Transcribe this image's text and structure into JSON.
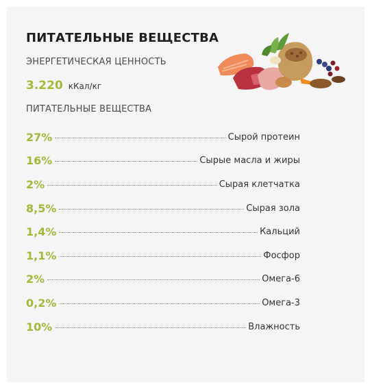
{
  "title": "ПИТАТЕЛЬНЫЕ ВЕЩЕСТВА",
  "energy": {
    "label": "ЭНЕРГЕТИЧЕСКАЯ ЦЕННОСТЬ",
    "value": "3.220",
    "unit": "кКал/кг"
  },
  "nutrients": {
    "label": "ПИТАТЕЛЬНЫЕ ВЕЩЕСТВА",
    "items": [
      {
        "value": "27%",
        "name": "Сырой протеин"
      },
      {
        "value": "16%",
        "name": "Сырые масла и жиры"
      },
      {
        "value": "2%",
        "name": "Сырая клетчатка"
      },
      {
        "value": "8,5%",
        "name": "Сырая зола"
      },
      {
        "value": "1,4%",
        "name": "Кальций"
      },
      {
        "value": "1,1%",
        "name": "Фосфор"
      },
      {
        "value": "2%",
        "name": "Омега-6"
      },
      {
        "value": "0,2%",
        "name": "Омега-3"
      },
      {
        "value": "10%",
        "name": "Влажность"
      }
    ]
  },
  "colors": {
    "accent": "#a3b93a",
    "background": "#f5f5f5",
    "text": "#333333"
  }
}
